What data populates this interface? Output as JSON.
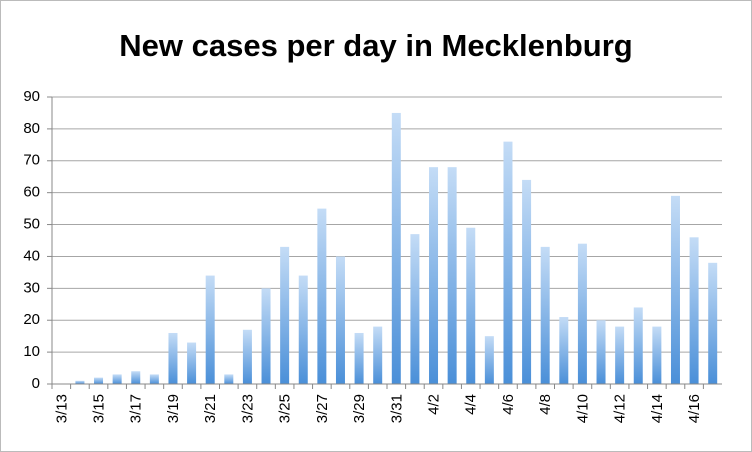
{
  "chart_data": {
    "type": "bar",
    "title": "New cases per day in Mecklenburg",
    "categories": [
      "3/13",
      null,
      "3/15",
      null,
      "3/17",
      null,
      "3/19",
      null,
      "3/21",
      null,
      "3/23",
      null,
      "3/25",
      null,
      "3/27",
      null,
      "3/29",
      null,
      "3/31",
      null,
      "4/2",
      null,
      "4/4",
      null,
      "4/6",
      null,
      "4/8",
      null,
      "4/10",
      null,
      "4/12",
      null,
      "4/14",
      null,
      "4/16",
      null
    ],
    "values": [
      0,
      1,
      2,
      3,
      4,
      3,
      16,
      13,
      34,
      3,
      17,
      30,
      43,
      34,
      55,
      40,
      16,
      18,
      85,
      47,
      68,
      68,
      49,
      15,
      76,
      64,
      43,
      21,
      44,
      20,
      18,
      24,
      18,
      59,
      46,
      38
    ],
    "color": "#4a8fd8",
    "ylim": [
      0,
      90
    ],
    "yticks": [
      0,
      10,
      20,
      30,
      40,
      50,
      60,
      70,
      80,
      90
    ],
    "grid": true
  }
}
